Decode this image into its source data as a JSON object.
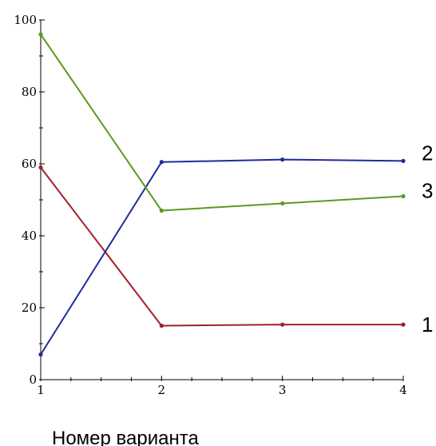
{
  "chart_data": {
    "type": "line",
    "x": [
      1,
      2,
      3,
      4
    ],
    "xticks": [
      "1",
      "2",
      "3",
      "4"
    ],
    "yticks": [
      "0",
      "20",
      "40",
      "60",
      "80",
      "100"
    ],
    "xlim": [
      1,
      4
    ],
    "ylim": [
      0,
      100
    ],
    "xlabel": "Номер варианта",
    "ylabel": "",
    "title": "",
    "grid": false,
    "series": [
      {
        "name": "1",
        "color": "#a0202a",
        "values": [
          59,
          15,
          15.3,
          15.3
        ]
      },
      {
        "name": "2",
        "color": "#1f2b9e",
        "values": [
          7,
          60.5,
          61.2,
          60.8
        ]
      },
      {
        "name": "3",
        "color": "#5a9a1e",
        "values": [
          96,
          47,
          49,
          51
        ]
      }
    ]
  }
}
